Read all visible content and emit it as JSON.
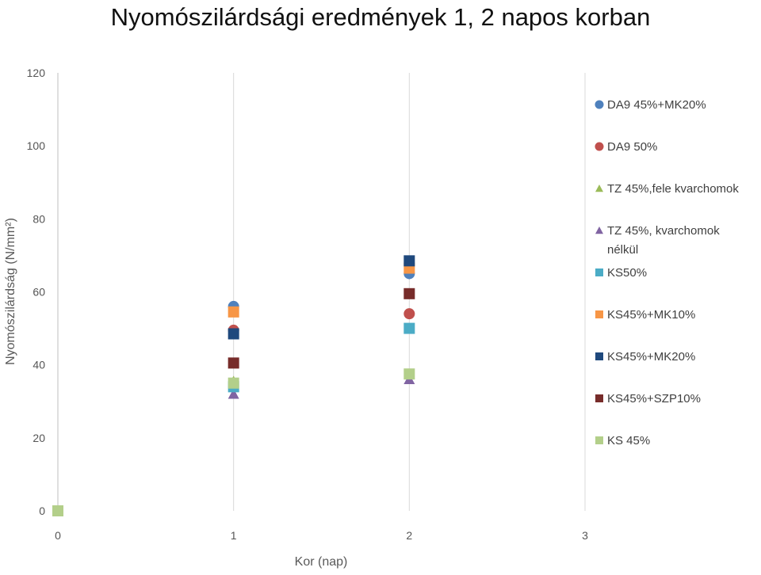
{
  "chart_data": {
    "type": "scatter",
    "title": "Nyomószilárdsági eredmények 1, 2 napos korban",
    "xlabel": "Kor (nap)",
    "ylabel": "Nyomószilárdság (N/mm²)",
    "xlim": [
      0,
      3
    ],
    "ylim": [
      0,
      120
    ],
    "xticks": [
      "0",
      "1",
      "2",
      "3"
    ],
    "yticks": [
      "0",
      "20",
      "40",
      "60",
      "80",
      "100",
      "120"
    ],
    "grid": "vertical",
    "legend_position": "right",
    "series": [
      {
        "name": "DA9 45%+MK20%",
        "marker": "circle",
        "color": "#4f81bd",
        "points": [
          [
            0,
            0
          ],
          [
            1,
            56
          ],
          [
            2,
            65
          ]
        ]
      },
      {
        "name": "DA9 50%",
        "marker": "circle",
        "color": "#c0504d",
        "points": [
          [
            0,
            0
          ],
          [
            1,
            49.5
          ],
          [
            2,
            54
          ]
        ]
      },
      {
        "name": "TZ 45%,fele kvarchomok",
        "marker": "triangle",
        "color": "#9bbb59",
        "points": [
          [
            0,
            0
          ],
          [
            1,
            35.5
          ],
          [
            2,
            37.5
          ]
        ]
      },
      {
        "name": "TZ 45%, kvarchomok nélkül",
        "marker": "triangle",
        "color": "#8064a2",
        "points": [
          [
            0,
            0
          ],
          [
            1,
            32
          ],
          [
            2,
            36
          ]
        ]
      },
      {
        "name": "KS50%",
        "marker": "square",
        "color": "#4bacc6",
        "points": [
          [
            0,
            0
          ],
          [
            1,
            34
          ],
          [
            2,
            50
          ]
        ]
      },
      {
        "name": "KS45%+MK10%",
        "marker": "square",
        "color": "#f79646",
        "points": [
          [
            0,
            0
          ],
          [
            1,
            54.5
          ],
          [
            2,
            66.5
          ]
        ]
      },
      {
        "name": "KS45%+MK20%",
        "marker": "square",
        "color": "#1f497d",
        "points": [
          [
            0,
            0
          ],
          [
            1,
            48.5
          ],
          [
            2,
            68.5
          ]
        ]
      },
      {
        "name": "KS45%+SZP10%",
        "marker": "square",
        "color": "#772c2a",
        "points": [
          [
            0,
            0
          ],
          [
            1,
            40.5
          ],
          [
            2,
            59.5
          ]
        ]
      },
      {
        "name": "KS 45%",
        "marker": "square",
        "color": "#b3cf8a",
        "points": [
          [
            0,
            0
          ],
          [
            1,
            35
          ],
          [
            2,
            37.5
          ]
        ]
      }
    ]
  }
}
